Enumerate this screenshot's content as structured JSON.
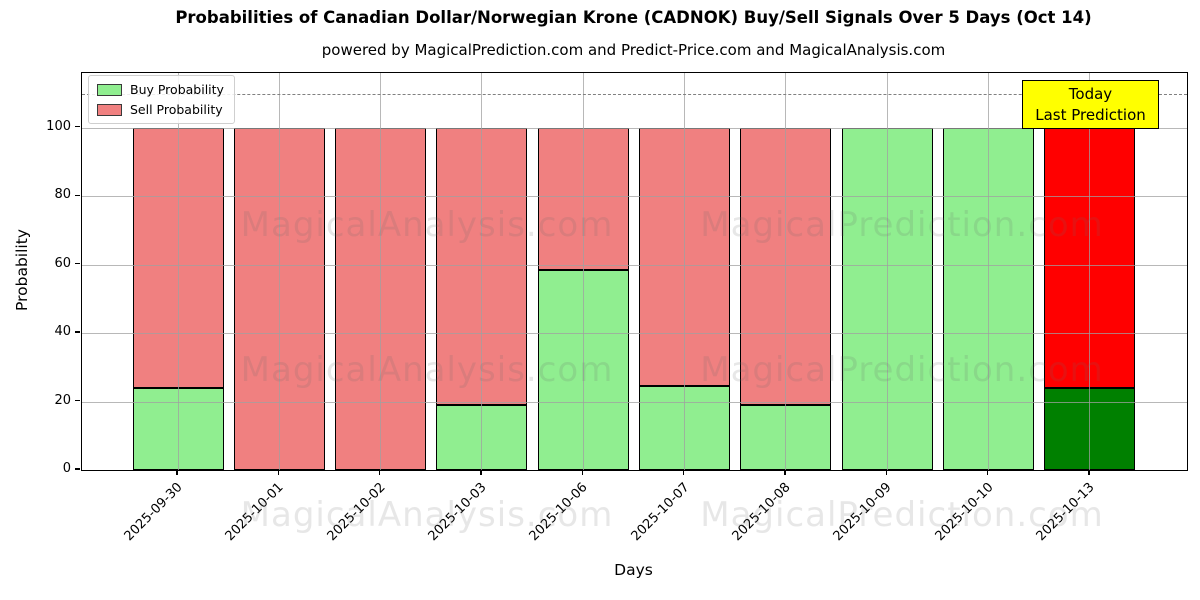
{
  "chart_data": {
    "type": "bar",
    "stacked": true,
    "title": "Probabilities of Canadian Dollar/Norwegian Krone (CADNOK) Buy/Sell Signals Over 5 Days (Oct 14)",
    "subtitle": "powered by MagicalPrediction.com and Predict-Price.com and MagicalAnalysis.com",
    "xlabel": "Days",
    "ylabel": "Probability",
    "categories": [
      "2025-09-30",
      "2025-10-01",
      "2025-10-02",
      "2025-10-03",
      "2025-10-06",
      "2025-10-07",
      "2025-10-08",
      "2025-10-09",
      "2025-10-10",
      "2025-10-13"
    ],
    "series": [
      {
        "name": "Buy Probability",
        "color": "#90EE90",
        "highlight_color": "#008000",
        "values": [
          24,
          0,
          0,
          19,
          58.5,
          24.5,
          19,
          100,
          100,
          24
        ]
      },
      {
        "name": "Sell Probability",
        "color": "#F08080",
        "highlight_color": "#FF0000",
        "values": [
          76,
          100,
          100,
          81,
          41.5,
          75.5,
          81,
          0,
          0,
          76
        ]
      }
    ],
    "highlight_index": 9,
    "yticks": [
      0,
      20,
      40,
      60,
      80,
      100
    ],
    "ylim": [
      0,
      116
    ],
    "grid": true,
    "legend_position": "upper-left",
    "threshold_line": {
      "y": 110,
      "style": "dashed",
      "color": "#808080"
    }
  },
  "annotation": {
    "line1": "Today",
    "line2": "Last Prediction",
    "bg_color": "#FFFF00",
    "border_color": "#000000"
  },
  "watermarks": {
    "left_text": "MagicalAnalysis.com",
    "right_text": "MagicalPrediction.com",
    "rows": 3
  }
}
